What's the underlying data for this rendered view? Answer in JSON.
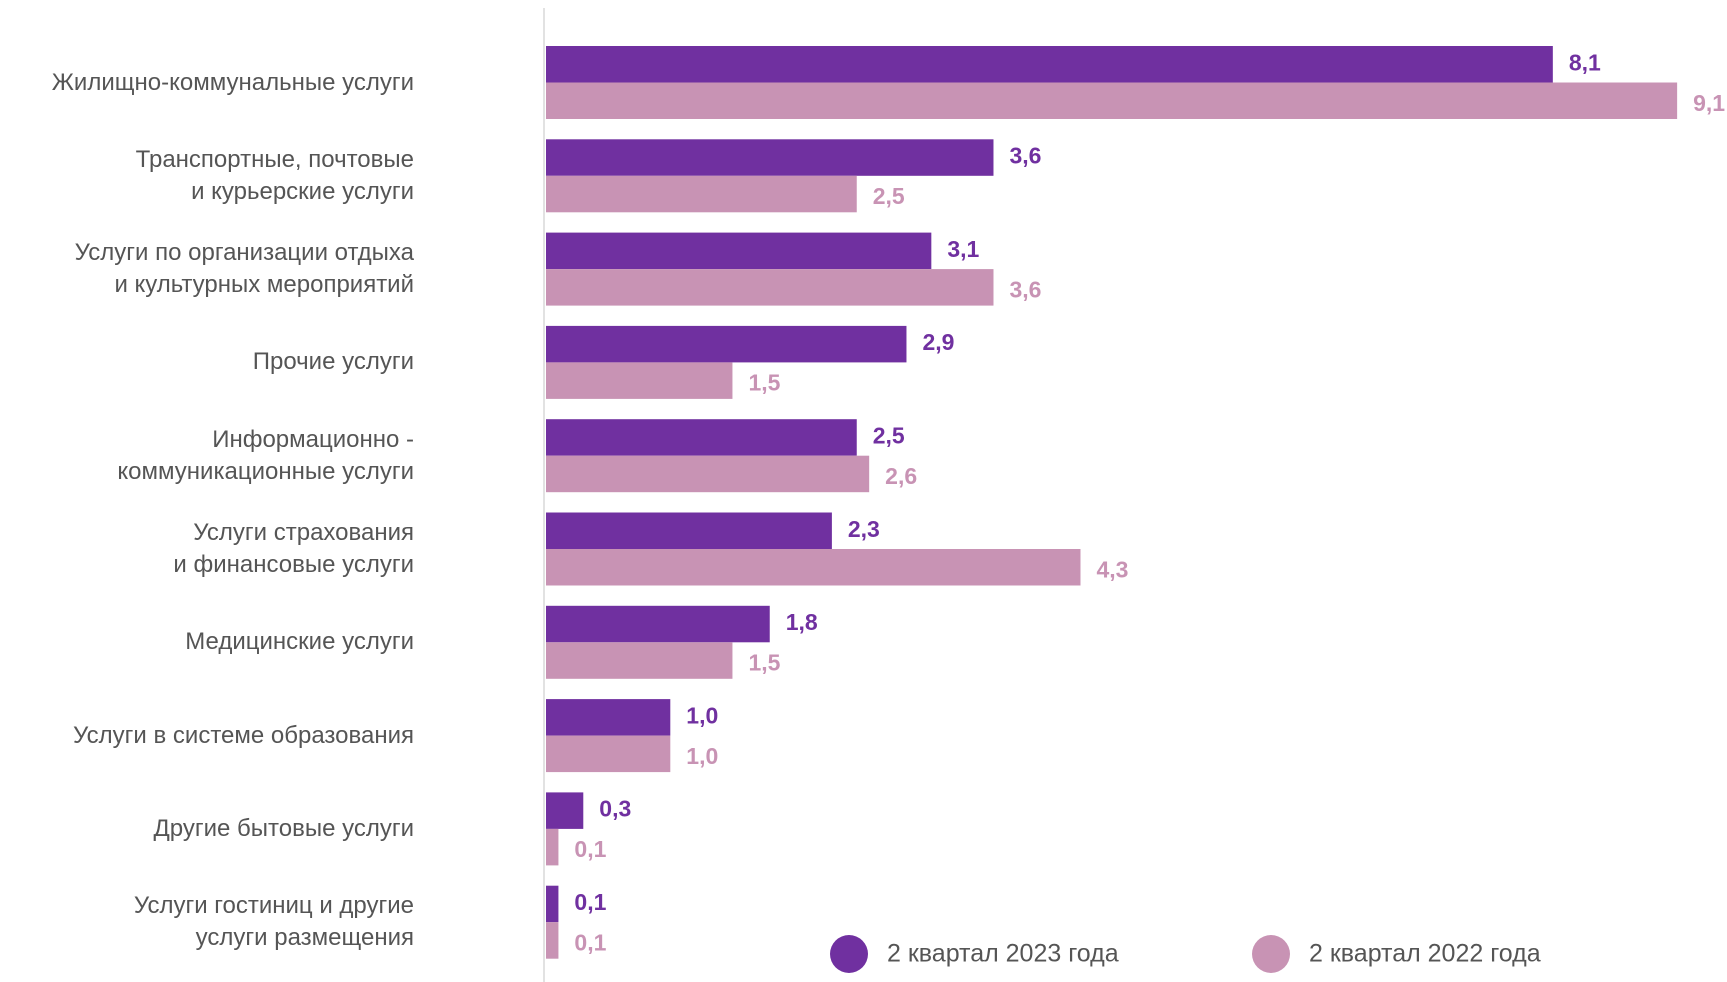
{
  "chart_data": {
    "type": "hbar",
    "categories": [
      "Жилищно-коммунальные услуги",
      "Транспортные, почтовые\nи курьерские услуги",
      "Услуги по организации отдыха\nи культурных мероприятий",
      "Прочие услуги",
      "Информационно -\nкоммуникационные услуги",
      "Услуги страхования\nи финансовые услуги",
      "Медицинские услуги",
      "Услуги в системе образования",
      "Другие бытовые услуги",
      "Услуги гостиниц и другие\nуслуги размещения"
    ],
    "series": [
      {
        "name": "2 квартал 2023 года",
        "color": "#7030a0",
        "values": [
          8.1,
          3.6,
          3.1,
          2.9,
          2.5,
          2.3,
          1.8,
          1.0,
          0.3,
          0.1
        ],
        "value_labels": [
          "8,1",
          "3,6",
          "3,1",
          "2,9",
          "2,5",
          "2,3",
          "1,8",
          "1,0",
          "0,3",
          "0,1"
        ]
      },
      {
        "name": "2 квартал 2022 года",
        "color": "#c893b4",
        "values": [
          9.1,
          2.5,
          3.6,
          1.5,
          2.6,
          4.3,
          1.5,
          1.0,
          0.1,
          0.1
        ],
        "value_labels": [
          "9,1",
          "2,5",
          "3,6",
          "1,5",
          "2,6",
          "4,3",
          "1,5",
          "1,0",
          "0,1",
          "0,1"
        ]
      }
    ]
  }
}
